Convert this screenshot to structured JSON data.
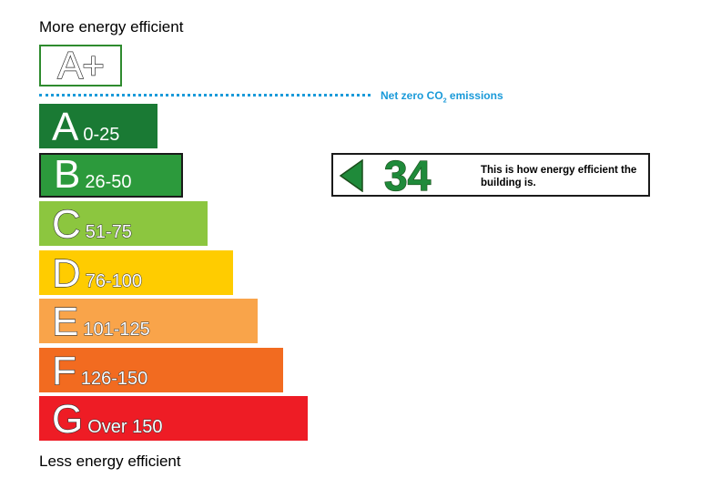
{
  "header": {
    "top_caption": "More energy efficient",
    "bottom_caption": "Less energy efficient"
  },
  "top_rating": {
    "label": "A+"
  },
  "net_zero": {
    "label_prefix": "Net zero CO",
    "label_sub": "2",
    "label_suffix": " emissions",
    "color": "#1a9ad9"
  },
  "chart_data": {
    "type": "bar",
    "title": "",
    "categories": [
      "A",
      "B",
      "C",
      "D",
      "E",
      "F",
      "G"
    ],
    "series": [
      {
        "values": [
          {
            "letter": "A",
            "range": "0-25",
            "color": "#1a7a34"
          },
          {
            "letter": "B",
            "range": "26-50",
            "color": "#2c9a3c"
          },
          {
            "letter": "C",
            "range": "51-75",
            "color": "#8cc63f"
          },
          {
            "letter": "D",
            "range": "76-100",
            "color": "#ffcc00"
          },
          {
            "letter": "E",
            "range": "101-125",
            "color": "#f9a44a"
          },
          {
            "letter": "F",
            "range": "126-150",
            "color": "#f26b20"
          },
          {
            "letter": "G",
            "range": "Over 150",
            "color": "#ee1c25"
          }
        ]
      }
    ],
    "rank": [
      1,
      2,
      3,
      4,
      5,
      6,
      7
    ],
    "current_rating": {
      "score": "34",
      "band": "B",
      "note": "This is how energy efficient the building is."
    }
  }
}
